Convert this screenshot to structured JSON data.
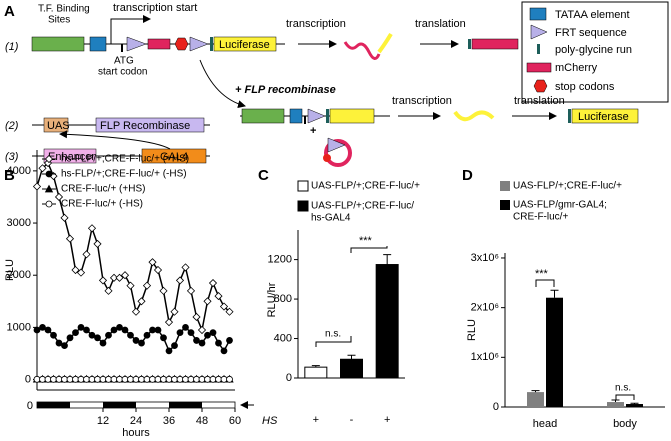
{
  "panel_labels": [
    "A",
    "B",
    "C",
    "D"
  ],
  "diagram": {
    "rows": [
      "(1)",
      "(2)",
      "(3)"
    ],
    "tf_binding_sites": [
      "T.F. Binding",
      "Sites"
    ],
    "transcription_start": "transcription start",
    "atg": [
      "ATG",
      "start codon"
    ],
    "luciferase": "Luciferase",
    "transcription": "transcription",
    "translation": "translation",
    "flp_recombinase_step": "+ FLP recombinase",
    "uas": "UAS",
    "flp_recombinase": "FLP Recombinase",
    "enhancer": "Enhancer",
    "gal4": "GAL4",
    "product_row": {
      "transcription": "transcription",
      "translation": "translation",
      "luciferase": "Luciferase"
    },
    "legend": [
      "TATAA element",
      "FRT sequence",
      "poly-glycine run",
      "mCherry",
      "stop codons"
    ]
  },
  "chart_data": [
    {
      "type": "line",
      "ylabel": "RLU",
      "xlabel": "hours",
      "ld_bar_label": "0",
      "x": [
        -12,
        -10,
        -8,
        -6,
        -4,
        -2,
        0,
        2,
        4,
        6,
        8,
        10,
        12,
        14,
        16,
        18,
        20,
        22,
        24,
        26,
        28,
        30,
        32,
        34,
        36,
        38,
        40,
        42,
        44,
        46,
        48,
        50,
        52,
        54,
        56,
        58
      ],
      "xlim": [
        -12,
        60
      ],
      "xticks": [
        12,
        24,
        36,
        48,
        60
      ],
      "ylim": [
        -200,
        4400
      ],
      "yticks": [
        0,
        1000,
        2000,
        3000,
        4000
      ],
      "series": [
        {
          "name": "hs-FLP/+;CRE-F-luc/+ (+HS)",
          "color": "#000000",
          "marker": "diamond",
          "fill": "#ffffff",
          "values": [
            3700,
            4050,
            4150,
            3900,
            3500,
            3100,
            2700,
            2100,
            2050,
            2400,
            2900,
            2600,
            1900,
            1700,
            1950,
            1950,
            2000,
            1800,
            1300,
            1500,
            1800,
            2250,
            2100,
            1700,
            1100,
            1300,
            1900,
            2150,
            1700,
            1200,
            950,
            1500,
            1850,
            1600,
            1400,
            1300
          ]
        },
        {
          "name": "hs-FLP/+;CRE-F-luc/+ (-HS)",
          "color": "#000000",
          "marker": "circle",
          "fill": "#000000",
          "values": [
            950,
            1000,
            950,
            850,
            700,
            650,
            800,
            900,
            1000,
            950,
            850,
            800,
            700,
            850,
            950,
            1000,
            950,
            850,
            750,
            700,
            850,
            950,
            950,
            800,
            550,
            650,
            900,
            1000,
            900,
            750,
            700,
            850,
            900,
            700,
            550,
            750
          ]
        },
        {
          "name": "CRE-F-luc/+ (+HS)",
          "color": "#000000",
          "marker": "triangle",
          "fill": "#000000",
          "values": [
            10,
            10,
            10,
            10,
            10,
            10,
            10,
            10,
            10,
            10,
            10,
            10,
            10,
            10,
            10,
            10,
            10,
            10,
            10,
            10,
            10,
            10,
            10,
            10,
            10,
            10,
            10,
            10,
            10,
            10,
            10,
            10,
            10,
            10,
            10,
            10
          ]
        },
        {
          "name": "CRE-F-luc/+ (-HS)",
          "color": "#000000",
          "marker": "circle",
          "fill": "#ffffff",
          "values": [
            5,
            5,
            5,
            5,
            5,
            5,
            5,
            5,
            5,
            5,
            5,
            5,
            5,
            5,
            5,
            5,
            5,
            5,
            5,
            5,
            5,
            5,
            5,
            5,
            5,
            5,
            5,
            5,
            5,
            5,
            5,
            5,
            5,
            5,
            5,
            5
          ]
        }
      ]
    },
    {
      "type": "bar",
      "ylabel": "RLU/hr",
      "xlabel": "HS",
      "categories": [
        "+",
        "-",
        "+"
      ],
      "values": [
        110,
        190,
        1150
      ],
      "errors": [
        15,
        40,
        100
      ],
      "colors": [
        "#ffffff",
        "#000000",
        "#000000"
      ],
      "legend": [
        {
          "name": [
            "UAS-FLP/+;CRE-F-luc/+"
          ],
          "color": "#ffffff"
        },
        {
          "name": [
            "UAS-FLP/+;CRE-F-luc/",
            "hs-GAL4"
          ],
          "color": "#000000"
        }
      ],
      "ylim": [
        0,
        1500
      ],
      "yticks": [
        0,
        400,
        800,
        1200
      ],
      "annotations": [
        "n.s.",
        "***"
      ]
    },
    {
      "type": "grouped_bar",
      "ylabel": "RLU",
      "categories": [
        "head",
        "body"
      ],
      "series": [
        {
          "name": [
            "UAS-FLP/+;CRE-F-luc/+"
          ],
          "color": "#808080",
          "values": [
            300000,
            100000
          ],
          "errors": [
            30000,
            40000
          ]
        },
        {
          "name": [
            "UAS-FLP/gmr-GAL4;",
            "CRE-F-luc/+"
          ],
          "color": "#000000",
          "values": [
            2200000,
            60000
          ],
          "errors": [
            150000,
            15000
          ]
        }
      ],
      "ylim": [
        0,
        3100000
      ],
      "yticks": [
        0,
        {
          "value": 1000000,
          "label": "1x10⁶"
        },
        {
          "value": 2000000,
          "label": "2x10⁶"
        },
        {
          "value": 3000000,
          "label": "3x10⁶"
        }
      ],
      "annotations": [
        "***",
        "n.s."
      ]
    }
  ]
}
